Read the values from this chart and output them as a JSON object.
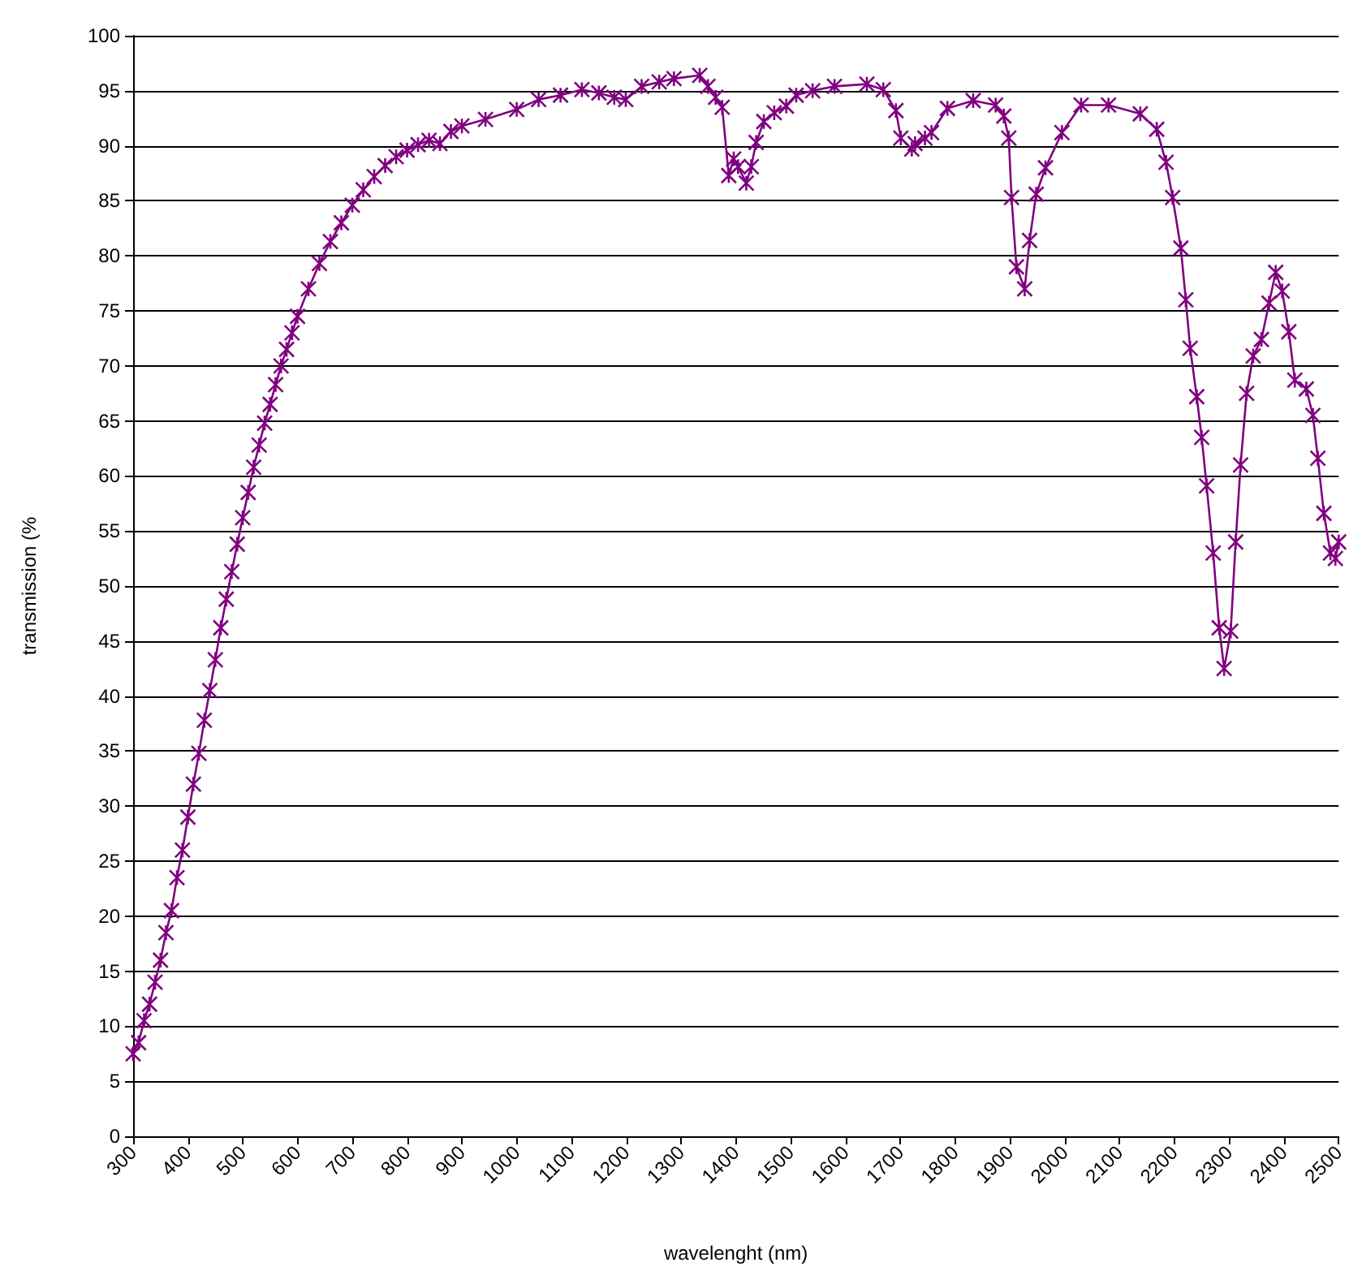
{
  "chart_data": {
    "type": "line",
    "xlabel": "wavelenght (nm)",
    "ylabel": "transmission (%",
    "xlim": [
      300,
      2500
    ],
    "xticks": [
      300,
      400,
      500,
      600,
      700,
      800,
      900,
      1000,
      1100,
      1200,
      1300,
      1400,
      1500,
      1600,
      1700,
      1800,
      1900,
      2000,
      2100,
      2200,
      2300,
      2400,
      2500
    ],
    "ylim": [
      0,
      100
    ],
    "yticks": [
      0,
      5,
      10,
      15,
      20,
      25,
      30,
      35,
      40,
      45,
      50,
      55,
      60,
      65,
      70,
      75,
      80,
      85,
      90,
      95,
      100
    ],
    "grid": "y",
    "marker": "cross",
    "line_style": "solid",
    "series": [
      {
        "color": "#800080",
        "x": [
          300,
          310,
          320,
          330,
          340,
          350,
          360,
          370,
          380,
          390,
          400,
          410,
          420,
          430,
          440,
          450,
          460,
          470,
          480,
          490,
          500,
          510,
          520,
          530,
          540,
          550,
          560,
          570,
          580,
          590,
          600,
          620,
          640,
          660,
          680,
          700,
          720,
          740,
          760,
          780,
          800,
          820,
          840,
          860,
          880,
          900,
          943,
          1000,
          1040,
          1080,
          1119,
          1150,
          1178,
          1199,
          1228,
          1260,
          1287,
          1334,
          1349,
          1363,
          1375,
          1387,
          1396,
          1404,
          1419,
          1428,
          1437,
          1451,
          1470,
          1492,
          1510,
          1540,
          1580,
          1639,
          1669,
          1692,
          1701,
          1721,
          1727,
          1745,
          1757,
          1786,
          1833,
          1874,
          1889,
          1898,
          1903,
          1912,
          1927,
          1936,
          1948,
          1965,
          1995,
          2030,
          2080,
          2138,
          2168,
          2185,
          2197,
          2212,
          2221,
          2229,
          2241,
          2250,
          2259,
          2271,
          2282,
          2291,
          2303,
          2312,
          2321,
          2332,
          2344,
          2359,
          2373,
          2385,
          2397,
          2409,
          2420,
          2441,
          2453,
          2462,
          2473,
          2485,
          2494,
          2500
        ],
        "values": [
          7.5,
          8.5,
          10.5,
          12,
          14,
          16,
          18.5,
          20.5,
          23.5,
          26,
          29,
          32,
          34.8,
          37.8,
          40.5,
          43.3,
          46.2,
          48.8,
          51.3,
          53.8,
          56.2,
          58.5,
          60.8,
          62.8,
          64.8,
          66.5,
          68.3,
          70,
          71.5,
          73,
          74.5,
          77,
          79.3,
          81.3,
          83,
          84.6,
          86,
          87.2,
          88.2,
          89,
          89.6,
          90.1,
          90.5,
          90.2,
          91.3,
          91.8,
          92.4,
          93.3,
          94.2,
          94.6,
          95.1,
          94.8,
          94.4,
          94.2,
          95.4,
          95.8,
          96.1,
          96.4,
          95.4,
          94.4,
          93.5,
          87.3,
          88.8,
          88.1,
          86.6,
          88.1,
          90.3,
          92.2,
          93,
          93.6,
          94.6,
          95,
          95.4,
          95.6,
          95.1,
          93.2,
          90.7,
          89.7,
          90.2,
          90.7,
          91.2,
          93.4,
          94.1,
          93.7,
          92.7,
          90.7,
          85.3,
          79,
          77,
          81.4,
          85.6,
          88,
          91.2,
          93.7,
          93.7,
          92.9,
          91.5,
          88.5,
          85.3,
          80.7,
          76,
          71.6,
          67.2,
          63.5,
          59.1,
          53,
          46.2,
          42.5,
          45.9,
          54,
          61,
          67.5,
          70.9,
          72.4,
          75.7,
          78.5,
          76.8,
          73.1,
          68.7,
          67.9,
          65.5,
          61.6,
          56.6,
          53,
          52.5,
          54
        ]
      }
    ]
  }
}
